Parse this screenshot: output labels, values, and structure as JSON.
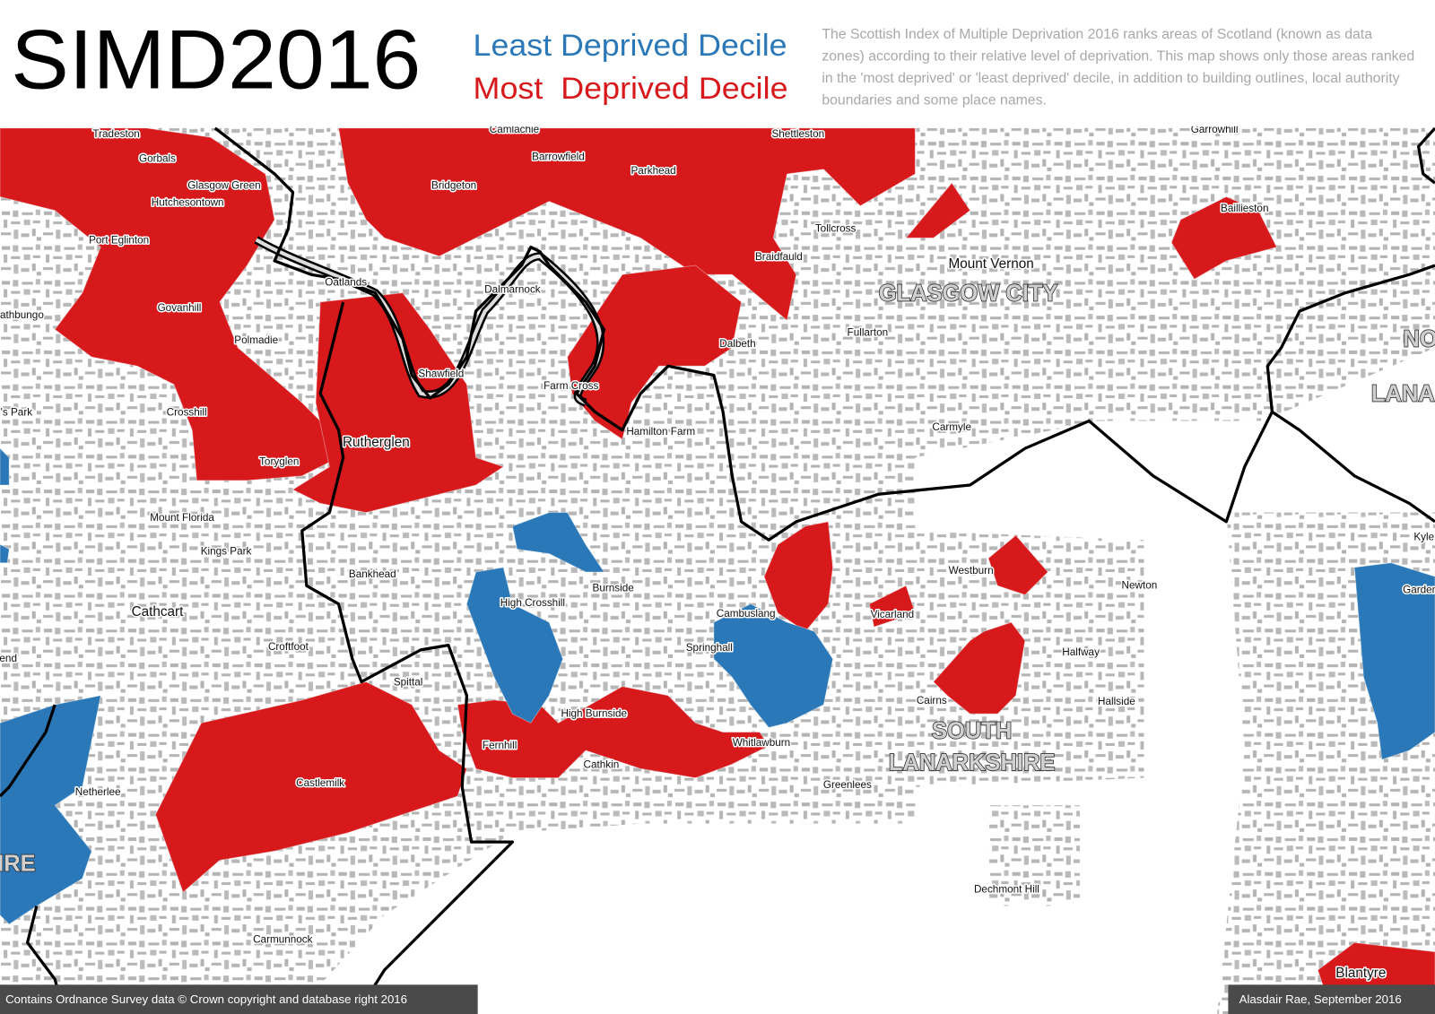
{
  "header": {
    "title": "SIMD2016",
    "legend": [
      {
        "label": "Least Deprived Decile",
        "color": "#2b78b8"
      },
      {
        "label": "Most  Deprived Decile",
        "color": "#d7191c"
      }
    ],
    "description": "The Scottish Index of Multiple Deprivation 2016 ranks areas of Scotland (known as data zones) according to their relative level of deprivation. This map shows only those areas ranked in the 'most deprived' or 'least deprived' decile, in addition to building outlines, local authority boundaries and some place names."
  },
  "places": [
    "Tradeston",
    "Gorbals",
    "Glasgow Green",
    "Hutchesontown",
    "Port Eglinton",
    "Oatlands",
    "Govanhill",
    "rathbungo",
    "Polmadie",
    "Crosshill",
    "'s Park",
    "Camlachie",
    "Barrowfield",
    "Bridgeton",
    "Parkhead",
    "Shettleston",
    "Garrowhill",
    "Baillieston",
    "Tollcross",
    "Braidfauld",
    "Mount Vernon",
    "Dalmarnock",
    "Shawfield",
    "Fullarton",
    "Dalbeth",
    "Farm Cross",
    "Hamilton Farm",
    "Carmyle",
    "Rutherglen",
    "Toryglen",
    "Mount Florida",
    "Kings Park",
    "Bankhead",
    "Cathcart",
    "Burnside",
    "High Crosshill",
    "Westburn",
    "Newton",
    "Cambuslang",
    "Vicarland",
    "Springhall",
    "Halfway",
    "Croftfoot",
    "end",
    "Spittal",
    "Cairns",
    "Hallside",
    "High Burnside",
    "Whitlawburn",
    "Fernhill",
    "Cathkin",
    "Castlemilk",
    "Greenlees",
    "Netherlee",
    "Dechmont Hill",
    "Carmunnock",
    "Blantyre",
    "Kyle",
    "Garden"
  ],
  "areas": [
    "GLASGOW CITY",
    "SOUTH",
    "LANARKSHIRE",
    "NO",
    "LANA",
    "IRE"
  ],
  "footer": {
    "left": "Contains Ordnance Survey data © Crown copyright and database right 2016",
    "right": "Alasdair Rae, September 2016"
  }
}
